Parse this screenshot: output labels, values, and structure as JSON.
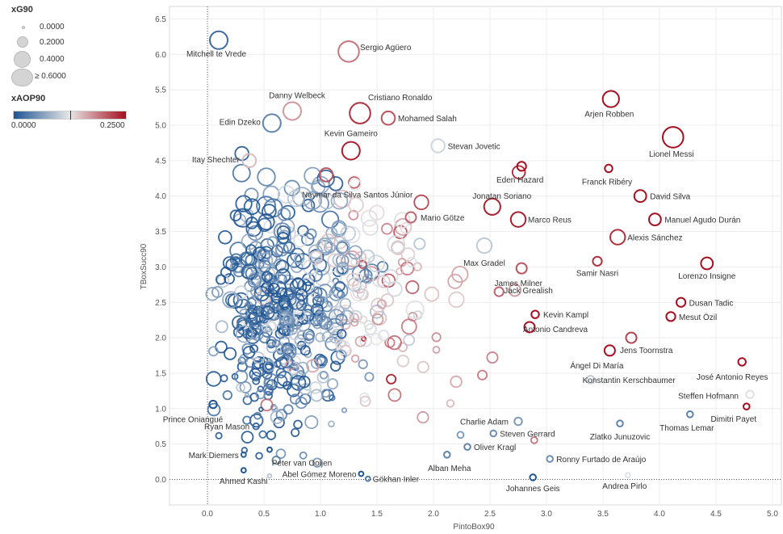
{
  "legend": {
    "size_title": "xG90",
    "size_items": [
      "0.0000",
      "0.2000",
      "0.4000",
      "≥ 0.6000"
    ],
    "color_title": "xAOP90",
    "color_min_label": "0.0000",
    "color_max_label": "0.2500",
    "color_low": "#1f5593",
    "color_mid": "#e7e7e7",
    "color_high": "#a50f1f"
  },
  "chart_data": {
    "type": "scatter",
    "xlabel": "PintoBox90",
    "ylabel": "TBoxSucc90",
    "xlim": [
      -0.3,
      5.05
    ],
    "ylim": [
      -0.35,
      6.6
    ],
    "xticks": [
      "0.0",
      "0.5",
      "1.0",
      "1.5",
      "2.0",
      "2.5",
      "3.0",
      "3.5",
      "4.0",
      "4.5",
      "5.0"
    ],
    "yticks": [
      "0.0",
      "0.5",
      "1.0",
      "1.5",
      "2.0",
      "2.5",
      "3.0",
      "3.5",
      "4.0",
      "4.5",
      "5.0",
      "5.5",
      "6.0",
      "6.5"
    ],
    "grid": true,
    "labeled_points": [
      {
        "name": "Mitchell te Vrede",
        "x": 0.1,
        "y": 6.2,
        "xg": 0.5,
        "xa": 0.02
      },
      {
        "name": "Sergio Agüero",
        "x": 1.25,
        "y": 6.04,
        "xg": 0.6,
        "xa": 0.19
      },
      {
        "name": "Danny Welbeck",
        "x": 0.75,
        "y": 5.2,
        "xg": 0.5,
        "xa": 0.17
      },
      {
        "name": "Cristiano Ronaldo",
        "x": 1.35,
        "y": 5.17,
        "xg": 0.6,
        "xa": 0.23
      },
      {
        "name": "Edin Dzeko",
        "x": 0.57,
        "y": 5.03,
        "xg": 0.5,
        "xa": 0.04
      },
      {
        "name": "Mohamed Salah",
        "x": 1.6,
        "y": 5.1,
        "xg": 0.35,
        "xa": 0.21
      },
      {
        "name": "Arjen Robben",
        "x": 3.57,
        "y": 5.37,
        "xg": 0.45,
        "xa": 0.25
      },
      {
        "name": "Kevin Gameiro",
        "x": 1.27,
        "y": 4.64,
        "xg": 0.5,
        "xa": 0.24
      },
      {
        "name": "Stevan Jovetic",
        "x": 2.04,
        "y": 4.71,
        "xg": 0.35,
        "xa": 0.11
      },
      {
        "name": "Lionel Messi",
        "x": 4.12,
        "y": 4.83,
        "xg": 0.6,
        "xa": 0.25
      },
      {
        "name": "Itay Shechter",
        "x": 0.37,
        "y": 4.5,
        "xg": 0.35,
        "xa": 0.15
      },
      {
        "name": "Neymar da Silva Santos Júnior",
        "x": 1.05,
        "y": 4.3,
        "xg": 0.35,
        "xa": 0.21
      },
      {
        "name": "Eden Hazard",
        "x": 2.78,
        "y": 4.42,
        "xg": 0.2,
        "xa": 0.25
      },
      {
        "name": "Franck Ribéry",
        "x": 3.55,
        "y": 4.39,
        "xg": 0.15,
        "xa": 0.25
      },
      {
        "name": "Jonatan Soriano",
        "x": 2.52,
        "y": 3.85,
        "xg": 0.45,
        "xa": 0.24
      },
      {
        "name": "David Silva",
        "x": 3.83,
        "y": 4.0,
        "xg": 0.3,
        "xa": 0.25
      },
      {
        "name": "Mario Götze",
        "x": 1.8,
        "y": 3.7,
        "xg": 0.25,
        "xa": 0.2
      },
      {
        "name": "Marco Reus",
        "x": 2.75,
        "y": 3.67,
        "xg": 0.4,
        "xa": 0.24
      },
      {
        "name": "Manuel Agudo Durán",
        "x": 3.96,
        "y": 3.67,
        "xg": 0.3,
        "xa": 0.25
      },
      {
        "name": "Alexis Sánchez",
        "x": 3.63,
        "y": 3.42,
        "xg": 0.4,
        "xa": 0.23
      },
      {
        "name": "Max Gradel",
        "x": 2.45,
        "y": 3.3,
        "xg": 0.4,
        "xa": 0.1
      },
      {
        "name": "Samir Nasri",
        "x": 3.45,
        "y": 3.08,
        "xg": 0.2,
        "xa": 0.23
      },
      {
        "name": "Lorenzo Insigne",
        "x": 4.42,
        "y": 3.05,
        "xg": 0.3,
        "xa": 0.25
      },
      {
        "name": "James Milner",
        "x": 2.78,
        "y": 2.98,
        "xg": 0.25,
        "xa": 0.21
      },
      {
        "name": "Jack Grealish",
        "x": 2.58,
        "y": 2.65,
        "xg": 0.2,
        "xa": 0.2
      },
      {
        "name": "Dusan Tadic",
        "x": 4.19,
        "y": 2.5,
        "xg": 0.2,
        "xa": 0.25
      },
      {
        "name": "Kevin Kampl",
        "x": 2.9,
        "y": 2.33,
        "xg": 0.15,
        "xa": 0.25
      },
      {
        "name": "Mesut Özil",
        "x": 4.1,
        "y": 2.3,
        "xg": 0.2,
        "xa": 0.25
      },
      {
        "name": "Antonio Candreva",
        "x": 2.85,
        "y": 2.15,
        "xg": 0.25,
        "xa": 0.25
      },
      {
        "name": "Jens Toornstra",
        "x": 3.75,
        "y": 2.0,
        "xg": 0.25,
        "xa": 0.22
      },
      {
        "name": "Ángel Di María",
        "x": 3.56,
        "y": 1.82,
        "xg": 0.25,
        "xa": 0.25
      },
      {
        "name": "Konstantin Kerschbaumer",
        "x": 3.39,
        "y": 1.41,
        "xg": 0.15,
        "xa": 0.1
      },
      {
        "name": "José Antonio Reyes",
        "x": 4.73,
        "y": 1.66,
        "xg": 0.15,
        "xa": 0.25
      },
      {
        "name": "Steffen Hofmann",
        "x": 4.8,
        "y": 1.2,
        "xg": 0.15,
        "xa": 0.13
      },
      {
        "name": "Prince Oniangué",
        "x": 0.05,
        "y": 1.06,
        "xg": 0.15,
        "xa": 0.0
      },
      {
        "name": "Charlie Adam",
        "x": 2.75,
        "y": 0.82,
        "xg": 0.15,
        "xa": 0.06
      },
      {
        "name": "Zlatko Junuzovic",
        "x": 3.65,
        "y": 0.79,
        "xg": 0.1,
        "xa": 0.04
      },
      {
        "name": "Thomas Lemar",
        "x": 4.27,
        "y": 0.92,
        "xg": 0.1,
        "xa": 0.04
      },
      {
        "name": "Dimitri Payet",
        "x": 4.77,
        "y": 1.03,
        "xg": 0.1,
        "xa": 0.25
      },
      {
        "name": "Ryan Mason",
        "x": 0.43,
        "y": 0.75,
        "xg": 0.1,
        "xa": 0.02
      },
      {
        "name": "Steven Gerrard",
        "x": 2.53,
        "y": 0.65,
        "xg": 0.1,
        "xa": 0.05
      },
      {
        "name": "Oliver Kragl",
        "x": 2.3,
        "y": 0.46,
        "xg": 0.1,
        "xa": 0.04
      },
      {
        "name": "Peter van Ooijen",
        "x": 0.55,
        "y": 0.42,
        "xg": 0.05,
        "xa": 0.0
      },
      {
        "name": "Alban Meha",
        "x": 2.12,
        "y": 0.35,
        "xg": 0.1,
        "xa": 0.04
      },
      {
        "name": "Mark Diemers",
        "x": 0.32,
        "y": 0.35,
        "xg": 0.05,
        "xa": 0.01
      },
      {
        "name": "Ronny Furtado de Araújo",
        "x": 3.03,
        "y": 0.29,
        "xg": 0.1,
        "xa": 0.05
      },
      {
        "name": "Abel Gómez Moreno",
        "x": 1.36,
        "y": 0.08,
        "xg": 0.05,
        "xa": 0.0
      },
      {
        "name": "Ahmed Kashi",
        "x": 0.32,
        "y": 0.13,
        "xg": 0.05,
        "xa": 0.0
      },
      {
        "name": "Gökhan Inler",
        "x": 1.42,
        "y": 0.01,
        "xg": 0.05,
        "xa": 0.03
      },
      {
        "name": "Johannes Geis",
        "x": 2.88,
        "y": 0.03,
        "xg": 0.1,
        "xa": 0.0
      },
      {
        "name": "Andrea Pirlo",
        "x": 3.72,
        "y": 0.06,
        "xg": 0.05,
        "xa": 0.12
      }
    ]
  }
}
